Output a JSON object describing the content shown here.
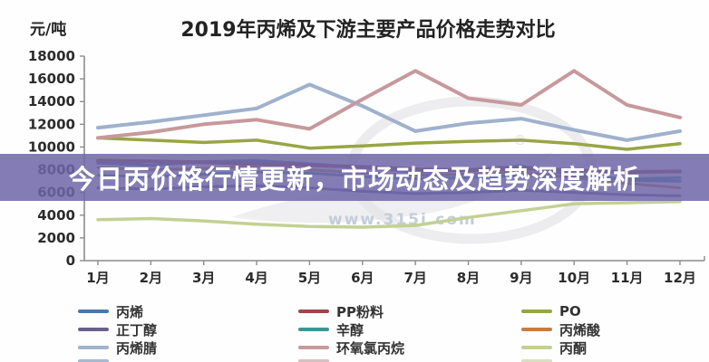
{
  "banner": {
    "text": "今日丙价格行情更新，市场动态及趋势深度解析",
    "bg_rgba": "rgba(110,102,168,0.85)",
    "text_color": "#FFFFFF"
  },
  "watermark": {
    "url": "www.315i.com",
    "registered": "®"
  },
  "axis": {
    "color": "#8c8c8c",
    "label_color": "#2b2b2b"
  },
  "chart_data": {
    "type": "line",
    "title": "2019年丙烯及下游主要产品价格走势对比",
    "ylabel": "元/吨",
    "xlabel": "",
    "ylim": [
      0,
      18000
    ],
    "ytick_step": 2000,
    "grid": false,
    "legend_position": "bottom",
    "categories": [
      "1月",
      "2月",
      "3月",
      "4月",
      "5月",
      "6月",
      "7月",
      "8月",
      "9月",
      "10月",
      "11月",
      "12月"
    ],
    "series": [
      {
        "key": "propylene",
        "name": "丙烯",
        "color": "#4878A8",
        "width": 3.5,
        "values": [
          8600,
          8400,
          8700,
          8800,
          8500,
          8200,
          7800,
          8000,
          8300,
          7600,
          7100,
          7000
        ]
      },
      {
        "key": "pp-powder",
        "name": "PP粉料",
        "color": "#9E4648",
        "width": 4,
        "values": [
          8800,
          8750,
          8650,
          8500,
          8400,
          8250,
          8050,
          7950,
          8100,
          7950,
          7800,
          7850
        ]
      },
      {
        "key": "po",
        "name": "PO",
        "color": "#98A546",
        "width": 3.5,
        "values": [
          10800,
          10600,
          10400,
          10600,
          9900,
          10100,
          10350,
          10500,
          10600,
          10300,
          9800,
          10300
        ]
      },
      {
        "key": "n-butanol",
        "name": "正丁醇",
        "color": "#6B5F8E",
        "width": 3,
        "values": [
          6400,
          6300,
          6500,
          6600,
          6400,
          6100,
          5900,
          6000,
          6200,
          6000,
          5800,
          5700
        ]
      },
      {
        "key": "octanol",
        "name": "辛醇",
        "color": "#3F9696",
        "width": 3,
        "values": [
          7500,
          7400,
          7600,
          7800,
          7700,
          7400,
          7200,
          7300,
          7500,
          7400,
          7200,
          7300
        ]
      },
      {
        "key": "acrylic-acid",
        "name": "丙烯酸",
        "color": "#C87B42",
        "width": 3,
        "values": [
          8200,
          8000,
          8100,
          8300,
          8000,
          7700,
          7500,
          7600,
          7800,
          7300,
          6800,
          6400
        ]
      },
      {
        "key": "acrylonitrile",
        "name": "丙烯腈",
        "color": "#9FB1CC",
        "width": 4,
        "values": [
          11700,
          12200,
          12800,
          13400,
          15500,
          13600,
          11400,
          12100,
          12500,
          11500,
          10600,
          11400
        ]
      },
      {
        "key": "epichlorohydrin",
        "name": "环氧氯丙烷",
        "color": "#C6999C",
        "width": 4,
        "values": [
          10800,
          11300,
          12000,
          12400,
          11600,
          14200,
          16700,
          14300,
          13700,
          16700,
          13700,
          12600
        ]
      },
      {
        "key": "acetone",
        "name": "丙酮",
        "color": "#C3D093",
        "width": 3.5,
        "values": [
          3600,
          3700,
          3500,
          3200,
          3000,
          2950,
          3100,
          3800,
          4400,
          5000,
          5100,
          5200
        ]
      }
    ]
  }
}
